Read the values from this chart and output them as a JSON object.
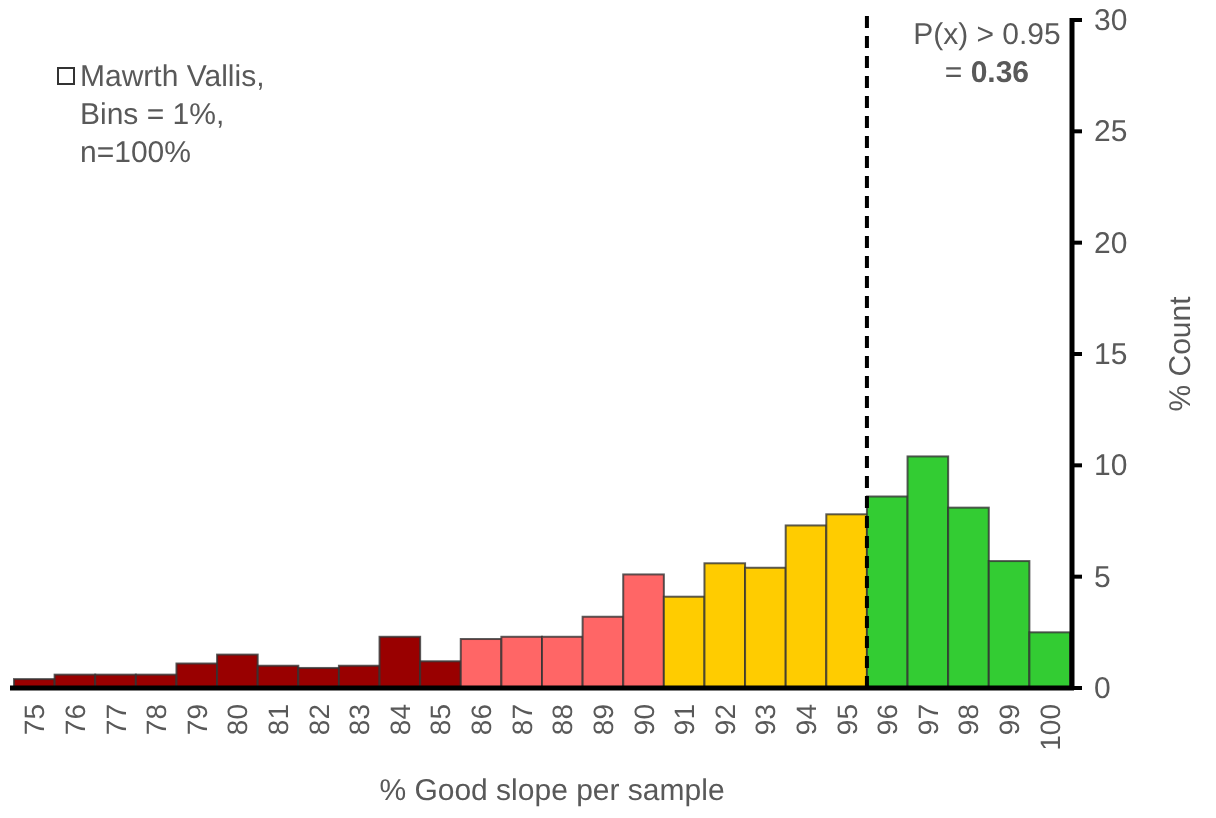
{
  "chart_data": {
    "type": "histogram",
    "xlabel": "% Good slope per sample",
    "ylabel": "% Count",
    "bins": [
      74.5,
      75.5,
      76.5,
      77.5,
      78.5,
      79.5,
      80.5,
      81.5,
      82.5,
      83.5,
      84.5,
      85.5,
      86.5,
      87.5,
      88.5,
      89.5,
      90.5,
      91.5,
      92.5,
      93.5,
      94.5,
      95.5,
      96.5,
      97.5,
      98.5,
      99.5,
      100.5
    ],
    "values": [
      0.4,
      0.6,
      0.6,
      0.6,
      1.1,
      1.5,
      1.0,
      0.9,
      1.0,
      2.3,
      1.2,
      2.2,
      2.3,
      2.3,
      3.2,
      5.1,
      4.1,
      5.6,
      5.4,
      7.3,
      7.8,
      8.6,
      10.4,
      8.1,
      5.7,
      2.5
    ],
    "colors": [
      "#990000",
      "#990000",
      "#990000",
      "#990000",
      "#990000",
      "#990000",
      "#990000",
      "#990000",
      "#990000",
      "#990000",
      "#990000",
      "#ff6666",
      "#ff6666",
      "#ff6666",
      "#ff6666",
      "#ff6666",
      "#ffcc00",
      "#ffcc00",
      "#ffcc00",
      "#ffcc00",
      "#ffcc00",
      "#33cc33",
      "#33cc33",
      "#33cc33",
      "#33cc33",
      "#33cc33"
    ],
    "xlim": [
      74.5,
      100.5
    ],
    "xticks": [
      75,
      76,
      77,
      78,
      79,
      80,
      81,
      82,
      83,
      84,
      85,
      86,
      87,
      88,
      89,
      90,
      91,
      92,
      93,
      94,
      95,
      96,
      97,
      98,
      99,
      100
    ],
    "ylim": [
      0,
      30
    ],
    "yticks": [
      0,
      5,
      10,
      15,
      20,
      25,
      30
    ],
    "ref_lines": [
      {
        "axis": "x",
        "value": 95.5,
        "line_style": "dashed",
        "color": "#000000"
      }
    ],
    "annotations": [
      "Mawrth Vallis,\nBins = 1%,\nn=100%",
      "P(x) > 0.95\n= 0.36"
    ],
    "grid": false
  }
}
